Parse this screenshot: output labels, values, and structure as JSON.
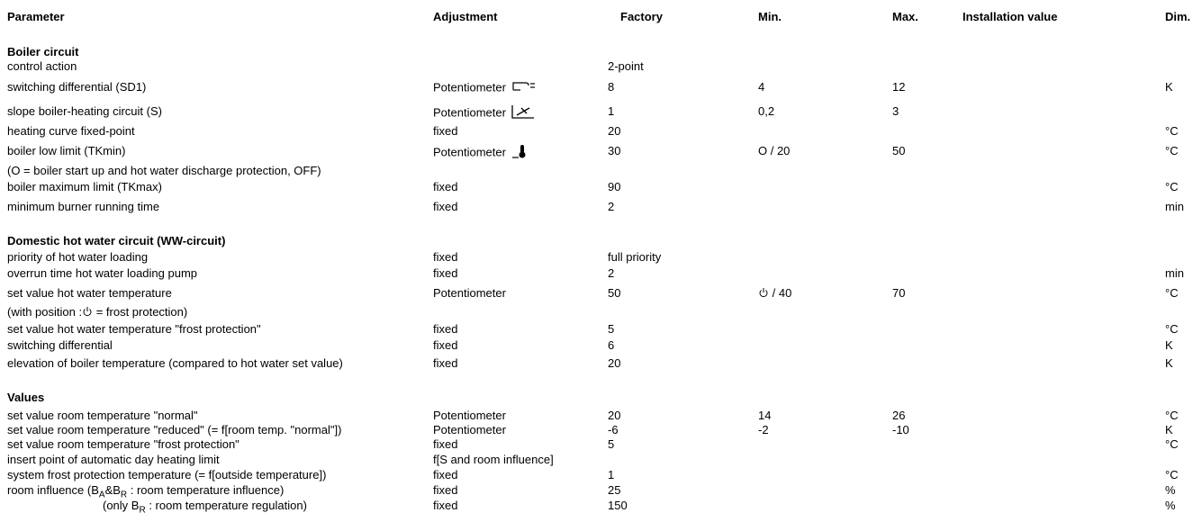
{
  "headers": {
    "parameter": "Parameter",
    "adjustment": "Adjustment",
    "factory": "Factory",
    "min": "Min.",
    "max": "Max.",
    "installation": "Installation value",
    "dim": "Dim."
  },
  "boiler": {
    "title": "Boiler circuit",
    "rows": [
      {
        "param": "control action",
        "adj": "",
        "factory": "2-point",
        "min": "",
        "max": "",
        "dim": ""
      },
      {
        "param": "switching differential (SD1)",
        "adj": "Potentiometer",
        "factory": "8",
        "min": "4",
        "max": "12",
        "dim": "K"
      },
      {
        "param": "slope boiler-heating circuit (S)",
        "adj": "Potentiometer",
        "factory": "1",
        "min": "0,2",
        "max": "3",
        "dim": ""
      },
      {
        "param": "heating curve fixed-point",
        "adj": "fixed",
        "factory": "20",
        "min": "",
        "max": "",
        "dim": "°C"
      },
      {
        "param": "boiler low limit (TKmin)",
        "adj": "Potentiometer",
        "factory": "30",
        "min": "O / 20",
        "max": "50",
        "dim": "°C"
      },
      {
        "param": "boiler maximum limit (TKmax)",
        "adj": "fixed",
        "factory": "90",
        "min": "",
        "max": "",
        "dim": "°C"
      },
      {
        "param": "minimum burner running time",
        "adj": "fixed",
        "factory": "2",
        "min": "",
        "max": "",
        "dim": "min"
      }
    ],
    "note": "(O = boiler start up and hot water discharge protection, OFF)"
  },
  "dhw": {
    "title": "Domestic hot water circuit (WW-circuit)",
    "rows": [
      {
        "param": "priority of hot water loading",
        "adj": "fixed",
        "factory": "full priority",
        "min": "",
        "max": "",
        "dim": ""
      },
      {
        "param": "overrun time hot water loading pump",
        "adj": "fixed",
        "factory": "2",
        "min": "",
        "max": "",
        "dim": "min"
      },
      {
        "param": "set value hot water temperature",
        "adj": "Potentiometer",
        "factory": "50",
        "min": "/ 40",
        "max": "70",
        "dim": "°C"
      },
      {
        "param": "set value hot water temperature \"frost protection\"",
        "adj": "fixed",
        "factory": "5",
        "min": "",
        "max": "",
        "dim": "°C"
      },
      {
        "param": "switching differential",
        "adj": "fixed",
        "factory": "6",
        "min": "",
        "max": "",
        "dim": "K"
      },
      {
        "param": "elevation of boiler temperature (compared to hot water set value)",
        "adj": "fixed",
        "factory": "20",
        "min": "",
        "max": "",
        "dim": "K"
      }
    ],
    "note_pre": "(with position :",
    "note_post": " = frost protection)"
  },
  "values": {
    "title": "Values",
    "rows": [
      {
        "param": "set value room temperature \"normal\"",
        "adj": "Potentiometer",
        "factory": "20",
        "min": "14",
        "max": "26",
        "dim": "°C"
      },
      {
        "param": "set value room temperature \"reduced\" (= f[room temp. \"normal\"])",
        "adj": "Potentiometer",
        "factory": "-6",
        "min": "-2",
        "max": "-10",
        "dim": "K"
      },
      {
        "param": "set value room temperature \"frost protection\"",
        "adj": "fixed",
        "factory": "5",
        "min": "",
        "max": "",
        "dim": "°C"
      },
      {
        "param": "insert point of automatic day heating limit",
        "adj": "f[S and room influence]",
        "factory": "",
        "min": "",
        "max": "",
        "dim": ""
      },
      {
        "param": "system frost protection temperature (= f[outside temperature])",
        "adj": "fixed",
        "factory": "1",
        "min": "",
        "max": "",
        "dim": "°C"
      },
      {
        "param_pre": "room influence  (B",
        "sub1": "A",
        "param_mid": "&B",
        "sub2": "R",
        "param_post": " : room temperature influence)",
        "adj": "fixed",
        "factory": "25",
        "min": "",
        "max": "",
        "dim": "%"
      },
      {
        "param_pre": "(only B",
        "sub1": "R",
        "param_post": " : room temperature regulation)",
        "adj": "fixed",
        "factory": "150",
        "min": "",
        "max": "",
        "dim": "%"
      }
    ]
  },
  "icons": {
    "switching_diff": "switching-differential-symbol-icon",
    "slope": "slope-curve-icon",
    "boiler_low": "thermometer-icon",
    "frost": "power-standby-icon"
  }
}
